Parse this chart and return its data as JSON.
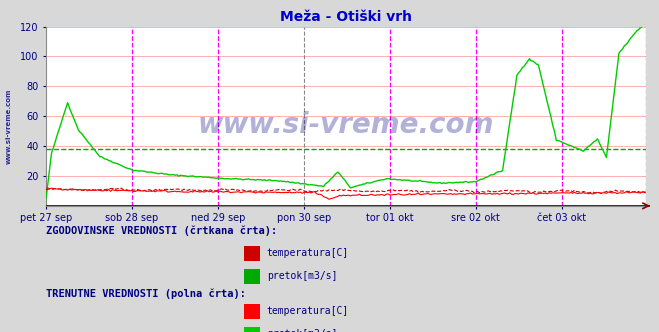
{
  "title": "Meža - Otiški vrh",
  "title_color": "#0000cc",
  "fig_bg_color": "#d8d8d8",
  "plot_bg_color": "#ffffff",
  "grid_color": "#ffb0b0",
  "ylim": [
    0,
    120
  ],
  "yticks": [
    20,
    40,
    60,
    80,
    100,
    120
  ],
  "tick_color": "#000080",
  "watermark": "www.si-vreme.com",
  "watermark_color": "#000080",
  "left_label": "www.si-vreme.com",
  "left_label_color": "#000080",
  "n_points": 336,
  "day_labels": [
    "pet 27 sep",
    "sob 28 sep",
    "ned 29 sep",
    "pon 30 sep",
    "tor 01 okt",
    "sre 02 okt",
    "čet 03 okt"
  ],
  "magenta_vlines": [
    48,
    96,
    192,
    240,
    288,
    335
  ],
  "gray_vline": 144,
  "hist_temp_color": "#cc0000",
  "hist_flow_color": "#00aa00",
  "curr_temp_color": "#ff0000",
  "curr_flow_color": "#00cc00",
  "bottom_bar_color": "#0000ff",
  "legend_hist_label": "ZGODOVINSKE VREDNOSTI (črtkana črta):",
  "legend_curr_label": "TRENUTNE VREDNOSTI (polna črta):",
  "legend_temp": "temperatura[C]",
  "legend_flow": "pretok[m3/s]",
  "legend_text_color": "#000080",
  "legend_label_color": "#336633"
}
